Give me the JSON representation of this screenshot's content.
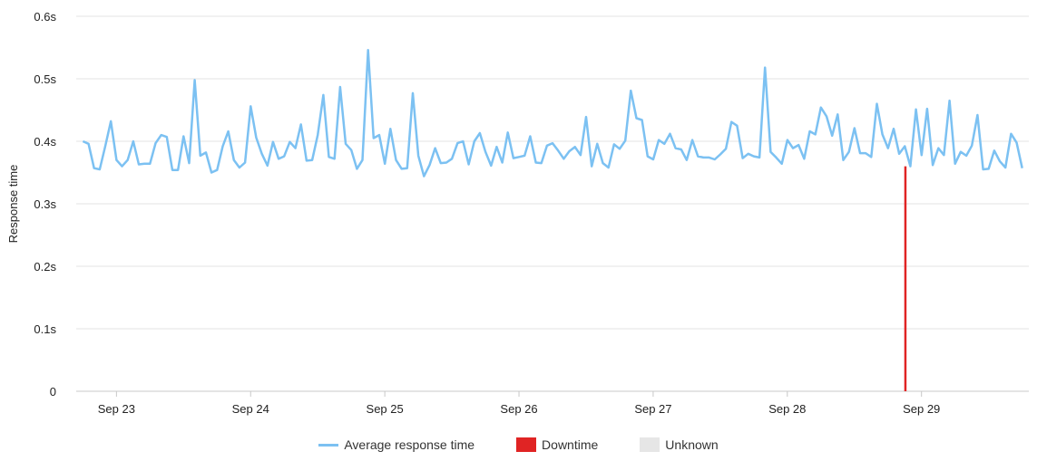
{
  "chart_data": {
    "type": "line",
    "title": "",
    "xlabel": "",
    "ylabel": "Response time",
    "ylim": [
      0,
      0.6
    ],
    "xlim": [
      22.7,
      29.8
    ],
    "y_ticks": [
      0,
      0.1,
      0.2,
      0.3,
      0.4,
      0.5,
      0.6
    ],
    "y_tick_labels": [
      "0",
      "0.1s",
      "0.2s",
      "0.3s",
      "0.4s",
      "0.5s",
      "0.6s"
    ],
    "x_ticks": [
      23,
      24,
      25,
      26,
      27,
      28,
      29
    ],
    "x_tick_labels": [
      "Sep 23",
      "Sep 24",
      "Sep 25",
      "Sep 26",
      "Sep 27",
      "Sep 28",
      "Sep 29"
    ],
    "grid": true,
    "legend_position": "bottom",
    "series": [
      {
        "name": "Average response time",
        "color": "#7cc1f2",
        "x_start": 22.75,
        "x_step": 0.04167,
        "values": [
          0.4,
          0.396,
          0.357,
          0.355,
          0.392,
          0.432,
          0.37,
          0.36,
          0.37,
          0.4,
          0.363,
          0.364,
          0.364,
          0.397,
          0.41,
          0.407,
          0.354,
          0.354,
          0.408,
          0.365,
          0.498,
          0.377,
          0.382,
          0.35,
          0.354,
          0.392,
          0.416,
          0.37,
          0.358,
          0.366,
          0.456,
          0.406,
          0.38,
          0.361,
          0.399,
          0.372,
          0.376,
          0.399,
          0.389,
          0.427,
          0.369,
          0.37,
          0.41,
          0.474,
          0.375,
          0.372,
          0.487,
          0.396,
          0.386,
          0.356,
          0.37,
          0.546,
          0.405,
          0.41,
          0.364,
          0.42,
          0.37,
          0.356,
          0.357,
          0.477,
          0.377,
          0.344,
          0.362,
          0.389,
          0.365,
          0.366,
          0.372,
          0.397,
          0.4,
          0.363,
          0.4,
          0.413,
          0.383,
          0.361,
          0.391,
          0.366,
          0.414,
          0.373,
          0.375,
          0.377,
          0.408,
          0.366,
          0.365,
          0.393,
          0.397,
          0.385,
          0.372,
          0.384,
          0.391,
          0.378,
          0.439,
          0.36,
          0.396,
          0.365,
          0.358,
          0.395,
          0.388,
          0.401,
          0.481,
          0.437,
          0.434,
          0.376,
          0.371,
          0.402,
          0.396,
          0.412,
          0.389,
          0.387,
          0.37,
          0.402,
          0.376,
          0.374,
          0.374,
          0.371,
          0.379,
          0.388,
          0.431,
          0.425,
          0.373,
          0.38,
          0.376,
          0.374,
          0.518,
          0.383,
          0.374,
          0.364,
          0.402,
          0.389,
          0.394,
          0.372,
          0.416,
          0.411,
          0.454,
          0.44,
          0.409,
          0.443,
          0.37,
          0.383,
          0.421,
          0.381,
          0.381,
          0.375,
          0.46,
          0.411,
          0.389,
          0.42,
          0.38,
          0.392,
          0.36,
          0.451,
          0.378,
          0.452,
          0.362,
          0.389,
          0.378,
          0.465,
          0.364,
          0.383,
          0.377,
          0.393,
          0.442,
          0.355,
          0.356,
          0.385,
          0.368,
          0.358,
          0.412,
          0.398,
          0.357
        ]
      },
      {
        "name": "Downtime",
        "color": "#e02424",
        "events": [
          {
            "x": 28.88,
            "value": 0.36
          }
        ]
      },
      {
        "name": "Unknown",
        "color": "#e6e6e6",
        "events": []
      }
    ]
  }
}
